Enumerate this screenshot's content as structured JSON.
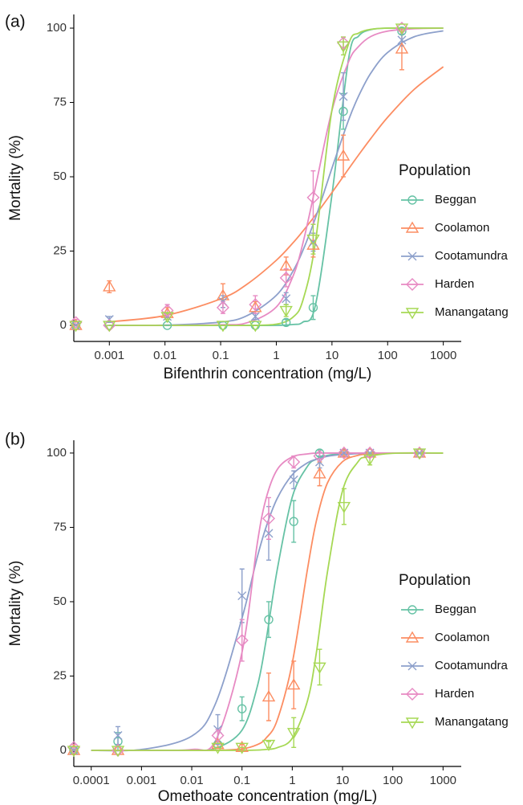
{
  "chart_data": [
    {
      "type": "scatter",
      "label": "(a)",
      "x_label": "Bifenthrin concentration (mg/L)",
      "y_label": "Mortality (%)",
      "x_log": true,
      "xlim": [
        0.00023,
        2100
      ],
      "ylim": [
        -5.4,
        104.6
      ],
      "xticks": [
        0.001,
        0.01,
        0.1,
        1,
        10,
        100,
        1000
      ],
      "yticks": [
        0,
        25,
        50,
        75,
        100
      ],
      "legend_title": "Population",
      "legend": "right",
      "x": [
        0.00025,
        0.001,
        0.011,
        0.11,
        0.42,
        1.5,
        4.6,
        16,
        180
      ],
      "fit_x": [
        0.001,
        0.01,
        0.1,
        0.3,
        1,
        2,
        3,
        5,
        10,
        20,
        30,
        50,
        100,
        300,
        1000
      ],
      "series": [
        {
          "name": "Beggan",
          "color": "#66c2a5",
          "marker": "circle",
          "values": [
            0,
            0,
            0,
            0,
            0,
            1,
            6,
            72,
            99
          ],
          "errors": [
            0,
            0,
            0,
            0,
            0,
            1,
            4,
            6,
            1
          ],
          "fit": [
            0,
            0,
            0,
            0,
            0,
            0.3,
            1.1,
            6.5,
            44,
            90,
            97.3,
            99.5,
            100,
            100,
            100
          ]
        },
        {
          "name": "Coolamon",
          "color": "#fc8d62",
          "marker": "triangle",
          "values": [
            0,
            13,
            4,
            10,
            6,
            20,
            27,
            57,
            93
          ],
          "errors": [
            0,
            2,
            2,
            4,
            2,
            3,
            4,
            7,
            7
          ],
          "fit": [
            1.2,
            3.3,
            8.9,
            13.9,
            21.9,
            27.8,
            31.7,
            37,
            44.7,
            52.7,
            57.3,
            62.9,
            70,
            79.4,
            87
          ]
        },
        {
          "name": "Cootamundra",
          "color": "#8da0cb",
          "marker": "cross",
          "values": [
            0,
            2,
            3,
            8,
            3,
            9,
            28,
            77,
            96
          ],
          "errors": [
            0,
            1,
            1,
            2,
            1,
            2,
            3,
            8,
            2
          ],
          "fit": [
            0,
            0.1,
            1.1,
            3.3,
            10.1,
            18.3,
            25.2,
            35.9,
            52.9,
            69.2,
            77.1,
            84.9,
            91.8,
            97.1,
            99.1
          ]
        },
        {
          "name": "Harden",
          "color": "#e78ac3",
          "marker": "diamond",
          "values": [
            1,
            0,
            5,
            6,
            7,
            16,
            43,
            95,
            100
          ],
          "errors": [
            1,
            0,
            2,
            2,
            3,
            3,
            9,
            2,
            0
          ],
          "fit": [
            0,
            0,
            0.2,
            0.9,
            6.2,
            16.6,
            27.6,
            46.2,
            72.3,
            88.8,
            93.8,
            97.2,
            99,
            99.8,
            100
          ]
        },
        {
          "name": "Manangatang",
          "color": "#a6d854",
          "marker": "triangle-down",
          "values": [
            0,
            0,
            3,
            0,
            0,
            5,
            29,
            94,
            100
          ],
          "errors": [
            0,
            0,
            1,
            0,
            0,
            2,
            5,
            3,
            0
          ],
          "fit": [
            0,
            0,
            0,
            0,
            0.4,
            2.8,
            8.4,
            27.5,
            72.5,
            94.8,
            98.3,
            99.6,
            100,
            100,
            100
          ]
        }
      ]
    },
    {
      "type": "scatter",
      "label": "(b)",
      "x_label": "Omethoate concentration (mg/L)",
      "y_label": "Mortality (%)",
      "x_log": true,
      "xlim": [
        4.5e-05,
        2300
      ],
      "ylim": [
        -5.4,
        104.3
      ],
      "xticks": [
        0.0001,
        0.001,
        0.01,
        0.1,
        1,
        10,
        100,
        1000
      ],
      "yticks": [
        0,
        25,
        50,
        75,
        100
      ],
      "legend_title": "Population",
      "legend": "right",
      "x": [
        4.5e-05,
        0.00034,
        0.033,
        0.1,
        0.34,
        1.07,
        3.5,
        10.7,
        35,
        340
      ],
      "fit_x": [
        0.0001,
        0.001,
        0.01,
        0.03,
        0.1,
        0.2,
        0.3,
        0.5,
        1,
        2,
        3,
        5,
        10,
        20,
        30,
        100,
        1000
      ],
      "series": [
        {
          "name": "Beggan",
          "color": "#66c2a5",
          "marker": "circle",
          "values": [
            0,
            3,
            2,
            14,
            44,
            77,
            100,
            100,
            100,
            100
          ],
          "errors": [
            0,
            3,
            1,
            4,
            6,
            7,
            1,
            0,
            0,
            0
          ],
          "fit": [
            0,
            0,
            0.1,
            0.7,
            6.8,
            21.3,
            36.8,
            60.6,
            85.2,
            95.5,
            97.9,
            99.2,
            99.8,
            100,
            100,
            100,
            100
          ]
        },
        {
          "name": "Coolamon",
          "color": "#fc8d62",
          "marker": "triangle",
          "values": [
            0,
            0,
            2,
            1,
            18,
            22,
            93,
            100,
            100,
            100
          ],
          "errors": [
            0,
            0,
            1,
            1,
            8,
            8,
            4,
            1,
            0,
            0
          ],
          "fit": [
            0,
            0,
            0,
            0,
            0.5,
            1.9,
            4.1,
            10.1,
            29.4,
            60.8,
            77,
            89.9,
            97.1,
            99.2,
            99.6,
            100,
            100
          ]
        },
        {
          "name": "Cootamundra",
          "color": "#8da0cb",
          "marker": "cross",
          "values": [
            0,
            5,
            7,
            52,
            73,
            91,
            97,
            100,
            100,
            100
          ],
          "errors": [
            0,
            3,
            5,
            9,
            9,
            3,
            2,
            0,
            0,
            0
          ],
          "fit": [
            0,
            0.3,
            4.8,
            15.9,
            44.5,
            64.8,
            75,
            84.7,
            92.7,
            96.7,
            97.9,
            98.9,
            99.5,
            99.8,
            100,
            100,
            100
          ]
        },
        {
          "name": "Harden",
          "color": "#e78ac3",
          "marker": "diamond",
          "values": [
            1,
            0,
            5,
            37,
            78,
            97,
            99,
            100,
            100,
            100
          ],
          "errors": [
            1,
            0,
            2,
            7,
            7,
            2,
            1,
            0,
            0,
            0
          ],
          "fit": [
            0,
            0,
            0.3,
            3.4,
            33,
            69.3,
            84.6,
            94.4,
            98.7,
            99.7,
            100,
            100,
            100,
            100,
            100,
            100,
            100
          ]
        },
        {
          "name": "Manangatang",
          "color": "#a6d854",
          "marker": "triangle-down",
          "values": [
            0,
            0,
            1,
            1,
            2,
            6,
            28,
            82,
            98,
            100
          ],
          "errors": [
            0,
            0,
            0,
            0,
            1,
            5,
            6,
            6,
            2,
            0
          ],
          "fit": [
            0,
            0,
            0,
            0,
            0,
            0.1,
            0.3,
            0.9,
            4.1,
            16.6,
            32.6,
            59.9,
            87.3,
            96.9,
            98.7,
            99.9,
            100
          ]
        }
      ]
    }
  ]
}
